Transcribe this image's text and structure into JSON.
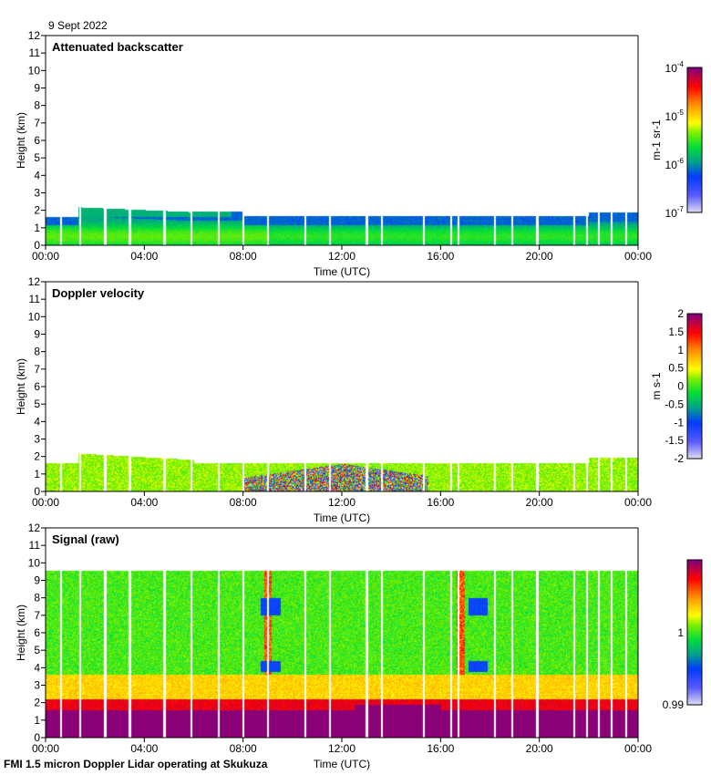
{
  "date": "9 Sept 2022",
  "footer": "FMI 1.5 micron Doppler Lidar operating at Skukuza",
  "chart_data": [
    {
      "type": "heatmap",
      "title": "Attenuated backscatter",
      "xlabel": "Time (UTC)",
      "ylabel": "Height (km)",
      "xticks": [
        "00:00",
        "04:00",
        "08:00",
        "12:00",
        "16:00",
        "20:00",
        "00:00"
      ],
      "yticks": [
        "0",
        "1",
        "2",
        "3",
        "4",
        "5",
        "6",
        "7",
        "8",
        "9",
        "10",
        "11",
        "12"
      ],
      "ylim": [
        0,
        12
      ],
      "colorbar": {
        "label": "m-1 sr-1",
        "ticks": [
          {
            "base": "10",
            "exp": "-4"
          },
          {
            "base": "10",
            "exp": "-5"
          },
          {
            "base": "10",
            "exp": "-6"
          },
          {
            "base": "10",
            "exp": "-7"
          }
        ],
        "scale": "log",
        "range": [
          1e-07,
          0.0001
        ]
      },
      "signal_top_km": 1.7
    },
    {
      "type": "heatmap",
      "title": "Doppler velocity",
      "xlabel": "Time (UTC)",
      "ylabel": "Height (km)",
      "xticks": [
        "00:00",
        "04:00",
        "08:00",
        "12:00",
        "16:00",
        "20:00",
        "00:00"
      ],
      "yticks": [
        "0",
        "1",
        "2",
        "3",
        "4",
        "5",
        "6",
        "7",
        "8",
        "9",
        "10",
        "11",
        "12"
      ],
      "ylim": [
        0,
        12
      ],
      "colorbar": {
        "label": "m s-1",
        "ticks": [
          "2",
          "1.5",
          "1",
          "0.5",
          "0",
          "-0.5",
          "-1",
          "-1.5",
          "-2"
        ],
        "range": [
          -2,
          2
        ]
      },
      "signal_top_km": 1.7
    },
    {
      "type": "heatmap",
      "title": "Signal (raw)",
      "xlabel": "Time (UTC)",
      "ylabel": "Height (km)",
      "xticks": [
        "00:00",
        "04:00",
        "08:00",
        "12:00",
        "16:00",
        "20:00",
        "00:00"
      ],
      "yticks": [
        "0",
        "1",
        "2",
        "3",
        "4",
        "5",
        "6",
        "7",
        "8",
        "9",
        "10",
        "11",
        "12"
      ],
      "ylim": [
        0,
        12
      ],
      "colorbar": {
        "label": "",
        "ticks": [
          "1",
          "0.99"
        ],
        "range": [
          0.99,
          1.01
        ]
      },
      "signal_top_km": 9.6
    }
  ]
}
